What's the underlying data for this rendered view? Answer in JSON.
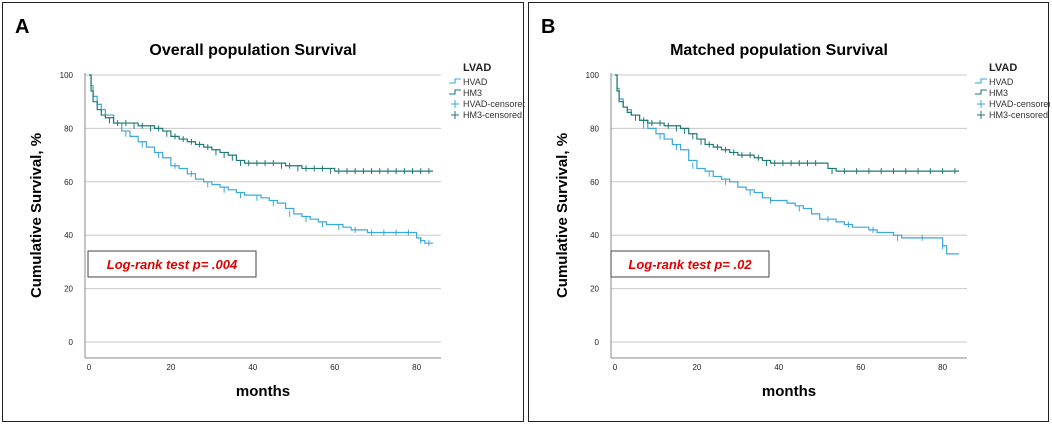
{
  "colors": {
    "HVAD": "#3aa7dd",
    "HM3": "#1f7a73",
    "logrank_text": "#e00000"
  },
  "chart_data": [
    {
      "panel_letter": "A",
      "type": "line",
      "title": "Overall population Survival",
      "xlabel": "months",
      "ylabel": "Cumulative Survival, %",
      "xlim": [
        0,
        84
      ],
      "ylim": [
        0,
        100
      ],
      "xticks": [
        0,
        20,
        40,
        60,
        80
      ],
      "yticks": [
        0,
        20,
        40,
        60,
        80,
        100
      ],
      "legend_title": "LVAD",
      "legend": [
        "HVAD",
        "HM3",
        "HVAD-censored",
        "HM3-censored"
      ],
      "annotation": "Log-rank test p= .004",
      "series": [
        {
          "name": "HVAD",
          "color_key": "HVAD",
          "x": [
            0,
            0.5,
            1,
            2,
            3,
            4,
            6,
            8,
            10,
            12,
            14,
            16,
            18,
            20,
            22,
            24,
            26,
            28,
            30,
            32,
            34,
            36,
            38,
            40,
            42,
            44,
            46,
            48,
            50,
            52,
            54,
            56,
            58,
            60,
            62,
            64,
            66,
            68,
            70,
            72,
            74,
            76,
            78,
            79,
            80,
            81,
            82,
            84
          ],
          "y": [
            100,
            96,
            92,
            89,
            87,
            85,
            82,
            79,
            77,
            75,
            73,
            71,
            69,
            66,
            65,
            63,
            61,
            60,
            59,
            58,
            57,
            56,
            55,
            55,
            54,
            53,
            52,
            50,
            48,
            47,
            46,
            45,
            44,
            44,
            43,
            42,
            42,
            41,
            41,
            41,
            41,
            41,
            41,
            41,
            39,
            38,
            37,
            37
          ],
          "censored_x": [
            9,
            13,
            17,
            21,
            25,
            29,
            33,
            37,
            41,
            45,
            49,
            53,
            57,
            61,
            65,
            69,
            72,
            75,
            78,
            81,
            83
          ],
          "censored_y": [
            78,
            74,
            70,
            66,
            63,
            59,
            57,
            55,
            54,
            52,
            48,
            46,
            44,
            43,
            42,
            41,
            41,
            41,
            41,
            38,
            37
          ]
        },
        {
          "name": "HM3",
          "color_key": "HM3",
          "x": [
            0,
            0.5,
            1,
            2,
            3,
            4,
            6,
            8,
            10,
            12,
            14,
            16,
            18,
            20,
            22,
            24,
            26,
            28,
            30,
            32,
            34,
            36,
            38,
            40,
            44,
            48,
            52,
            56,
            60,
            64,
            68,
            72,
            76,
            80,
            84
          ],
          "y": [
            100,
            94,
            90,
            87,
            85,
            84,
            82,
            82,
            82,
            81,
            81,
            80,
            79,
            77,
            76,
            75,
            74,
            73,
            72,
            71,
            70,
            68,
            67,
            67,
            67,
            66,
            65,
            65,
            64,
            64,
            64,
            64,
            64,
            64,
            64
          ],
          "censored_x": [
            5,
            7,
            9,
            11,
            13,
            15,
            17,
            19,
            21,
            23,
            25,
            27,
            29,
            31,
            33,
            35,
            37,
            39,
            41,
            43,
            45,
            47,
            49,
            51,
            53,
            55,
            57,
            59,
            61,
            63,
            65,
            67,
            69,
            71,
            73,
            75,
            77,
            79,
            81,
            83
          ],
          "censored_y": [
            83,
            82,
            82,
            81,
            81,
            80,
            80,
            78,
            77,
            76,
            75,
            74,
            73,
            71,
            70,
            69,
            67,
            67,
            67,
            67,
            67,
            66,
            66,
            65,
            65,
            65,
            65,
            64,
            64,
            64,
            64,
            64,
            64,
            64,
            64,
            64,
            64,
            64,
            64,
            64
          ]
        }
      ]
    },
    {
      "panel_letter": "B",
      "type": "line",
      "title": "Matched population Survival",
      "xlabel": "months",
      "ylabel": "Cumulative Survival, %",
      "xlim": [
        0,
        84
      ],
      "ylim": [
        0,
        100
      ],
      "xticks": [
        0,
        20,
        40,
        60,
        80
      ],
      "yticks": [
        0,
        20,
        40,
        60,
        80,
        100
      ],
      "legend_title": "LVAD",
      "legend": [
        "HVAD",
        "HM3",
        "HVAD-censored",
        "HM3-censored"
      ],
      "annotation": "Log-rank test p= .02",
      "series": [
        {
          "name": "HVAD",
          "color_key": "HVAD",
          "x": [
            0,
            0.5,
            1,
            2,
            3,
            4,
            6,
            8,
            10,
            12,
            14,
            16,
            18,
            20,
            22,
            24,
            26,
            28,
            30,
            32,
            34,
            36,
            38,
            40,
            42,
            44,
            46,
            48,
            50,
            52,
            54,
            56,
            58,
            60,
            62,
            64,
            66,
            68,
            70,
            72,
            74,
            76,
            78,
            80,
            81,
            84
          ],
          "y": [
            100,
            95,
            91,
            88,
            87,
            85,
            83,
            80,
            78,
            76,
            74,
            72,
            68,
            65,
            64,
            62,
            61,
            60,
            58,
            57,
            56,
            54,
            53,
            53,
            52,
            51,
            50,
            48,
            46,
            46,
            45,
            44,
            43,
            43,
            42,
            41,
            41,
            40,
            39,
            39,
            39,
            39,
            39,
            36,
            33,
            33
          ],
          "censored_x": [
            7,
            11,
            15,
            19,
            23,
            27,
            33,
            38,
            45,
            52,
            57,
            63,
            69,
            75,
            80
          ],
          "censored_y": [
            81,
            77,
            73,
            66,
            63,
            60,
            56,
            53,
            50,
            46,
            44,
            42,
            39,
            39,
            36
          ]
        },
        {
          "name": "HM3",
          "color_key": "HM3",
          "x": [
            0,
            0.5,
            1,
            2,
            3,
            4,
            6,
            8,
            10,
            12,
            14,
            16,
            18,
            20,
            22,
            24,
            26,
            28,
            30,
            32,
            34,
            36,
            38,
            40,
            44,
            48,
            50,
            52,
            54,
            58,
            62,
            66,
            70,
            74,
            78,
            84
          ],
          "y": [
            100,
            94,
            90,
            88,
            86,
            85,
            83,
            82,
            82,
            81,
            81,
            80,
            78,
            76,
            74,
            73,
            72,
            71,
            70,
            70,
            69,
            68,
            67,
            67,
            67,
            67,
            67,
            65,
            64,
            64,
            64,
            64,
            64,
            64,
            64,
            64
          ],
          "censored_x": [
            5,
            7,
            9,
            11,
            13,
            15,
            17,
            19,
            21,
            23,
            25,
            27,
            29,
            31,
            33,
            35,
            37,
            39,
            41,
            43,
            45,
            47,
            49,
            53,
            56,
            59,
            62,
            65,
            68,
            71,
            74,
            77,
            80,
            83
          ],
          "censored_y": [
            84,
            83,
            82,
            82,
            81,
            80,
            79,
            77,
            75,
            74,
            73,
            72,
            71,
            70,
            70,
            69,
            67,
            67,
            67,
            67,
            67,
            67,
            67,
            64,
            64,
            64,
            64,
            64,
            64,
            64,
            64,
            64,
            64,
            64
          ]
        }
      ]
    }
  ]
}
